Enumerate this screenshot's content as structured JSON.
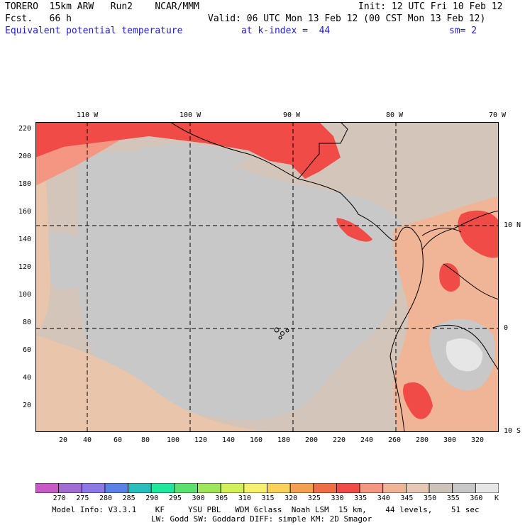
{
  "header": {
    "line1_left": "TORERO  15km ARW   Run2    NCAR/MMM",
    "line1_right": "Init: 12 UTC Fri 10 Feb 12",
    "line2_left": "Fcst.   66 h",
    "line2_right": "Valid: 06 UTC Mon 13 Feb 12 (00 CST Mon 13 Feb 12)",
    "line3_field": "Equivalent potential temperature",
    "line3_level": "at k-index =  44",
    "line3_smooth": "sm= 2"
  },
  "map": {
    "top_labels": [
      "110 W",
      "100 W",
      "90 W",
      "80 W",
      "70 W"
    ],
    "right_labels": [
      "10 N",
      "0",
      "10 S"
    ],
    "left_ticks": [
      "220",
      "200",
      "180",
      "160",
      "140",
      "120",
      "100",
      "80",
      "60",
      "40",
      "20"
    ],
    "bottom_ticks": [
      "20",
      "40",
      "60",
      "80",
      "100",
      "120",
      "140",
      "160",
      "180",
      "200",
      "220",
      "240",
      "260",
      "280",
      "300",
      "320"
    ]
  },
  "colorbar": {
    "labels": [
      "270",
      "275",
      "280",
      "285",
      "290",
      "295",
      "300",
      "305",
      "310",
      "315",
      "320",
      "325",
      "330",
      "335",
      "340",
      "345",
      "350",
      "355",
      "360"
    ],
    "unit": "K",
    "colors": [
      "#c85ac8",
      "#a06ed2",
      "#8c78e6",
      "#5a82e6",
      "#28bebe",
      "#1ee69b",
      "#5ae16e",
      "#a0e65a",
      "#d2f05a",
      "#f5f06e",
      "#fad25a",
      "#f5a050",
      "#f06e46",
      "#f04b46",
      "#f59682",
      "#f0b496",
      "#e6c8b4",
      "#cdc3b9",
      "#c8c8c8",
      "#e6e6e6"
    ]
  },
  "footer": {
    "line1": "Model Info: V3.3.1    KF     YSU PBL   WDM 6class  Noah LSM  15 km,    44 levels,    51 sec",
    "line2": "LW: Godd SW: Goddard DIFF: simple KM: 2D Smagor"
  }
}
